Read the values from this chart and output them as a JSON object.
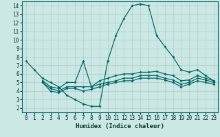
{
  "title": "",
  "xlabel": "Humidex (Indice chaleur)",
  "bg_color": "#cce8e4",
  "grid_color": "#aacccc",
  "line_color": "#006666",
  "xlim": [
    -0.5,
    23.5
  ],
  "ylim": [
    1.5,
    14.5
  ],
  "xticks": [
    0,
    1,
    2,
    3,
    4,
    5,
    6,
    7,
    8,
    9,
    10,
    11,
    12,
    13,
    14,
    15,
    16,
    17,
    18,
    19,
    20,
    21,
    22,
    23
  ],
  "yticks": [
    2,
    3,
    4,
    5,
    6,
    7,
    8,
    9,
    10,
    11,
    12,
    13,
    14
  ],
  "line1_x": [
    0,
    1,
    2,
    3,
    4,
    5,
    6,
    7,
    8,
    9,
    10,
    11,
    12,
    13,
    14,
    15,
    16,
    17,
    18,
    19,
    20,
    21,
    22,
    23
  ],
  "line1_y": [
    7.5,
    6.5,
    5.5,
    5.0,
    4.5,
    3.5,
    3.0,
    2.5,
    2.2,
    2.2,
    7.5,
    10.5,
    12.5,
    14.0,
    14.2,
    14.0,
    10.5,
    9.2,
    8.0,
    6.5,
    6.2,
    6.5,
    5.8,
    5.2
  ],
  "line2_x": [
    2,
    3,
    4,
    5,
    6,
    7,
    8,
    9,
    10,
    11,
    12,
    13,
    14,
    15,
    16,
    17,
    18,
    19,
    20,
    21,
    22,
    23
  ],
  "line2_y": [
    5.2,
    4.5,
    4.3,
    5.0,
    5.0,
    7.5,
    4.5,
    5.2,
    5.5,
    5.8,
    6.0,
    6.0,
    6.2,
    6.2,
    6.3,
    6.0,
    5.8,
    5.2,
    5.3,
    5.8,
    5.5,
    5.2
  ],
  "line3_x": [
    2,
    3,
    4,
    5,
    6,
    7,
    8,
    9,
    10,
    11,
    12,
    13,
    14,
    15,
    16,
    17,
    18,
    19,
    20,
    21,
    22,
    23
  ],
  "line3_y": [
    5.0,
    4.3,
    4.0,
    4.5,
    4.5,
    4.5,
    4.5,
    4.8,
    5.0,
    5.2,
    5.5,
    5.5,
    5.8,
    5.8,
    5.8,
    5.5,
    5.3,
    4.8,
    5.0,
    5.5,
    5.3,
    5.0
  ],
  "line4_x": [
    2,
    3,
    4,
    5,
    6,
    7,
    8,
    9,
    10,
    11,
    12,
    13,
    14,
    15,
    16,
    17,
    18,
    19,
    20,
    21,
    22,
    23
  ],
  "line4_y": [
    5.0,
    4.0,
    3.8,
    4.3,
    4.3,
    4.0,
    4.2,
    4.5,
    4.8,
    5.0,
    5.2,
    5.2,
    5.5,
    5.5,
    5.5,
    5.3,
    5.0,
    4.5,
    4.8,
    5.2,
    5.0,
    4.8
  ]
}
